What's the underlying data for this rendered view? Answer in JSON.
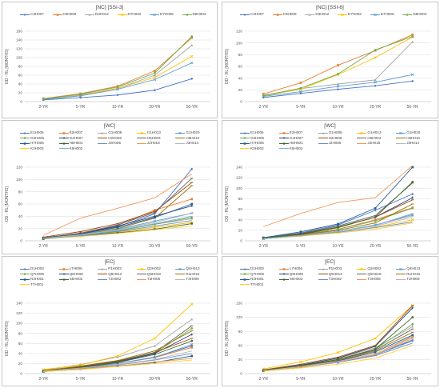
{
  "chart_data": [
    {
      "type": "line",
      "title": "[NC] [SSI-3]",
      "ylabel": "DD - RL [MONTHS]",
      "categories": [
        "2-YR",
        "5-YR",
        "10-YR",
        "20-YR",
        "50-YR"
      ],
      "ylim": [
        0,
        160
      ],
      "yticks": [
        0,
        20,
        40,
        60,
        80,
        100,
        120,
        140,
        160
      ],
      "legend_position": "top",
      "legend_columns": 6,
      "series": [
        {
          "name": "C3H007",
          "color": "#4472c4",
          "marker": "diamond",
          "values": [
            4,
            9,
            15,
            26,
            52
          ]
        },
        {
          "name": "C9H009",
          "color": "#ed7d31",
          "marker": "square",
          "values": [
            7,
            18,
            35,
            70,
            145
          ]
        },
        {
          "name": "D3H012",
          "color": "#a5a5a5",
          "marker": "triangle",
          "values": [
            6,
            15,
            30,
            60,
            128
          ]
        },
        {
          "name": "D7H002",
          "color": "#ffc000",
          "marker": "x",
          "values": [
            5,
            14,
            30,
            55,
            103
          ]
        },
        {
          "name": "D7H005",
          "color": "#5b9bd5",
          "marker": "x",
          "values": [
            5,
            13,
            28,
            50,
            88
          ]
        },
        {
          "name": "D8H004",
          "color": "#70ad47",
          "marker": "circle",
          "values": [
            6,
            17,
            33,
            65,
            148
          ]
        }
      ]
    },
    {
      "type": "line",
      "title": "[NC] [SSI-6]",
      "ylabel": "DD - RL [MONTHS]",
      "categories": [
        "2-YR",
        "5-YR",
        "10-YR",
        "20-YR",
        "50-YR"
      ],
      "ylim": [
        0,
        120
      ],
      "yticks": [
        0,
        20,
        40,
        60,
        80,
        100,
        120
      ],
      "legend_position": "top",
      "legend_columns": 6,
      "series": [
        {
          "name": "C3H007",
          "color": "#4472c4",
          "marker": "diamond",
          "values": [
            7,
            14,
            21,
            27,
            35
          ]
        },
        {
          "name": "C9H009",
          "color": "#ed7d31",
          "marker": "square",
          "values": [
            13,
            32,
            62,
            87,
            114
          ]
        },
        {
          "name": "D3H012",
          "color": "#a5a5a5",
          "marker": "triangle",
          "values": [
            11,
            22,
            30,
            37,
            102
          ]
        },
        {
          "name": "D7H002",
          "color": "#ffc000",
          "marker": "x",
          "values": [
            10,
            21,
            46,
            75,
            110
          ]
        },
        {
          "name": "D7H005",
          "color": "#5b9bd5",
          "marker": "x",
          "values": [
            9,
            17,
            26,
            33,
            46
          ]
        },
        {
          "name": "D8H004",
          "color": "#70ad47",
          "marker": "circle",
          "values": [
            10,
            23,
            47,
            88,
            111
          ]
        }
      ]
    },
    {
      "type": "line",
      "title": "[WC]",
      "ylabel": "DD - RL [MONTHS]",
      "categories": [
        "2-YR",
        "5-YR",
        "10-YR",
        "20-YR",
        "50-YR"
      ],
      "ylim": [
        0,
        120
      ],
      "yticks": [
        0,
        20,
        40,
        60,
        80,
        100,
        120
      ],
      "legend_position": "top",
      "legend_columns": 5,
      "series": [
        {
          "name": "E1H006",
          "color": "#4472c4",
          "marker": "diamond",
          "values": [
            4,
            11,
            23,
            44,
            117
          ]
        },
        {
          "name": "E2H007",
          "color": "#ed7d31",
          "marker": "square",
          "values": [
            4,
            13,
            25,
            50,
            68
          ]
        },
        {
          "name": "G1H008",
          "color": "#a5a5a5",
          "marker": "triangle",
          "values": [
            3,
            9,
            16,
            27,
            36
          ]
        },
        {
          "name": "G1H013",
          "color": "#ffc000",
          "marker": "x",
          "values": [
            3,
            8,
            14,
            22,
            30
          ]
        },
        {
          "name": "G1H020",
          "color": "#5b9bd5",
          "marker": "x",
          "values": [
            4,
            10,
            19,
            32,
            45
          ]
        },
        {
          "name": "G2H005",
          "color": "#70ad47",
          "marker": "circle",
          "values": [
            3,
            9,
            16,
            27,
            38
          ]
        },
        {
          "name": "G4H007",
          "color": "#264478",
          "marker": "plus",
          "values": [
            5,
            12,
            24,
            40,
            57
          ]
        },
        {
          "name": "H2H006",
          "color": "#9e480e",
          "marker": "dash",
          "values": [
            6,
            15,
            28,
            48,
            95
          ]
        },
        {
          "name": "H5H004",
          "color": "#636363",
          "marker": "dash",
          "values": [
            5,
            12,
            26,
            46,
            102
          ]
        },
        {
          "name": "H6H010",
          "color": "#997300",
          "marker": "dash",
          "values": [
            4,
            10,
            20,
            37,
            90
          ]
        },
        {
          "name": "H7H006",
          "color": "#255e91",
          "marker": "square",
          "values": [
            4,
            11,
            22,
            38,
            60
          ]
        },
        {
          "name": "H8H001",
          "color": "#43682b",
          "marker": "circle",
          "values": [
            3,
            8,
            13,
            19,
            28
          ]
        },
        {
          "name": "J2H005",
          "color": "#698ed0",
          "marker": "none",
          "values": [
            3,
            8,
            15,
            24,
            33
          ]
        },
        {
          "name": "J2H018",
          "color": "#f1975a",
          "marker": "none",
          "values": [
            9,
            37,
            53,
            70,
            109
          ]
        },
        {
          "name": "J3H014",
          "color": "#b7b7b7",
          "marker": "none",
          "values": [
            4,
            10,
            18,
            30,
            45
          ]
        },
        {
          "name": "K3H003",
          "color": "#ffcd33",
          "marker": "none",
          "values": [
            3,
            7,
            12,
            18,
            24
          ]
        },
        {
          "name": "K5H002",
          "color": "#7cafdd",
          "marker": "none",
          "values": [
            3,
            9,
            17,
            28,
            40
          ]
        }
      ]
    },
    {
      "type": "line",
      "title": "[WC]",
      "ylabel": "DD - RL [MONTHS]",
      "categories": [
        "2-YR",
        "5-YR",
        "10-YR",
        "20-YR",
        "50-YR"
      ],
      "ylim": [
        0,
        140
      ],
      "yticks": [
        0,
        20,
        40,
        60,
        80,
        100,
        120,
        140
      ],
      "legend_position": "top",
      "legend_columns": 5,
      "series": [
        {
          "name": "E1H006",
          "color": "#4472c4",
          "marker": "diamond",
          "values": [
            6,
            15,
            30,
            58,
            89
          ]
        },
        {
          "name": "E2H007",
          "color": "#ed7d31",
          "marker": "square",
          "values": [
            5,
            12,
            22,
            40,
            63
          ]
        },
        {
          "name": "G1H008",
          "color": "#a5a5a5",
          "marker": "triangle",
          "values": [
            4,
            10,
            18,
            30,
            48
          ]
        },
        {
          "name": "G1H013",
          "color": "#ffc000",
          "marker": "x",
          "values": [
            4,
            10,
            16,
            26,
            40
          ]
        },
        {
          "name": "G1H020",
          "color": "#5b9bd5",
          "marker": "x",
          "values": [
            4,
            10,
            18,
            30,
            50
          ]
        },
        {
          "name": "G2H005",
          "color": "#70ad47",
          "marker": "circle",
          "values": [
            5,
            12,
            22,
            38,
            62
          ]
        },
        {
          "name": "G4H007",
          "color": "#264478",
          "marker": "plus",
          "values": [
            5,
            13,
            26,
            45,
            82
          ]
        },
        {
          "name": "H2H006",
          "color": "#9e480e",
          "marker": "dash",
          "values": [
            5,
            12,
            25,
            45,
            78
          ]
        },
        {
          "name": "H5H004",
          "color": "#636363",
          "marker": "dash",
          "values": [
            5,
            14,
            28,
            48,
            110
          ]
        },
        {
          "name": "H6H010",
          "color": "#997300",
          "marker": "dash",
          "values": [
            4,
            11,
            20,
            34,
            70
          ]
        },
        {
          "name": "H7H006",
          "color": "#255e91",
          "marker": "square",
          "values": [
            6,
            17,
            32,
            62,
            140
          ]
        },
        {
          "name": "H8H001",
          "color": "#43682b",
          "marker": "circle",
          "values": [
            5,
            13,
            26,
            45,
            112
          ]
        },
        {
          "name": "J2H005",
          "color": "#698ed0",
          "marker": "none",
          "values": [
            4,
            9,
            16,
            25,
            36
          ]
        },
        {
          "name": "J2H018",
          "color": "#f1975a",
          "marker": "none",
          "values": [
            27,
            52,
            73,
            82,
            143
          ]
        },
        {
          "name": "J3H014",
          "color": "#b7b7b7",
          "marker": "none",
          "values": [
            4,
            10,
            18,
            28,
            45
          ]
        },
        {
          "name": "K3H003",
          "color": "#ffcd33",
          "marker": "none",
          "values": [
            4,
            9,
            15,
            22,
            34
          ]
        },
        {
          "name": "K5H002",
          "color": "#7cafdd",
          "marker": "none",
          "values": [
            4,
            10,
            18,
            29,
            52
          ]
        }
      ]
    },
    {
      "type": "line",
      "title": "[EC]",
      "ylabel": "DD - RL [MONTHS]",
      "categories": [
        "2-YR",
        "5-YR",
        "10-YR",
        "20-YR",
        "50-YR"
      ],
      "ylim": [
        0,
        140
      ],
      "yticks": [
        0,
        20,
        40,
        60,
        80,
        100,
        120,
        140
      ],
      "legend_position": "top",
      "legend_columns": 5,
      "series": [
        {
          "name": "D1H003",
          "color": "#4472c4",
          "marker": "diamond",
          "values": [
            5,
            12,
            20,
            33,
            55
          ]
        },
        {
          "name": "L7H006",
          "color": "#ed7d31",
          "marker": "square",
          "values": [
            5,
            11,
            20,
            32,
            52
          ]
        },
        {
          "name": "P1H003",
          "color": "#a5a5a5",
          "marker": "triangle",
          "values": [
            7,
            18,
            33,
            55,
            108
          ]
        },
        {
          "name": "Q2H002",
          "color": "#ffc000",
          "marker": "x",
          "values": [
            8,
            17,
            35,
            70,
            138
          ]
        },
        {
          "name": "Q4H013",
          "color": "#5b9bd5",
          "marker": "x",
          "values": [
            5,
            11,
            20,
            32,
            58
          ]
        },
        {
          "name": "Q7H005",
          "color": "#70ad47",
          "marker": "circle",
          "values": [
            5,
            12,
            23,
            40,
            90
          ]
        },
        {
          "name": "Q8H008",
          "color": "#264478",
          "marker": "plus",
          "values": [
            5,
            12,
            23,
            40,
            78
          ]
        },
        {
          "name": "Q9H012",
          "color": "#9e480e",
          "marker": "dash",
          "values": [
            6,
            14,
            25,
            42,
            70
          ]
        },
        {
          "name": "Q9H018",
          "color": "#636363",
          "marker": "dash",
          "values": [
            5,
            13,
            24,
            42,
            95
          ]
        },
        {
          "name": "R1H015",
          "color": "#997300",
          "marker": "dash",
          "values": [
            6,
            15,
            26,
            45,
            85
          ]
        },
        {
          "name": "R2H001",
          "color": "#255e91",
          "marker": "square",
          "values": [
            4,
            9,
            15,
            22,
            35
          ]
        },
        {
          "name": "S5H002",
          "color": "#43682b",
          "marker": "circle",
          "values": [
            5,
            12,
            22,
            38,
            65
          ]
        },
        {
          "name": "T3H002",
          "color": "#698ed0",
          "marker": "none",
          "values": [
            4,
            10,
            17,
            27,
            40
          ]
        },
        {
          "name": "T3H005",
          "color": "#f1975a",
          "marker": "none",
          "values": [
            4,
            9,
            15,
            23,
            30
          ]
        },
        {
          "name": "T3H009",
          "color": "#b7b7b7",
          "marker": "none",
          "values": [
            5,
            11,
            18,
            28,
            45
          ]
        },
        {
          "name": "T7H001",
          "color": "#ffcd33",
          "marker": "none",
          "values": [
            4,
            8,
            14,
            20,
            27
          ]
        }
      ]
    },
    {
      "type": "line",
      "title": "[EC]",
      "ylabel": "DD - RL [MONTHS]",
      "categories": [
        "2-YR",
        "5-YR",
        "10-YR",
        "20-YR",
        "50-YR"
      ],
      "ylim": [
        0,
        150
      ],
      "yticks": [
        0,
        30,
        60,
        90,
        120,
        150
      ],
      "legend_position": "top",
      "legend_columns": 5,
      "series": [
        {
          "name": "D1H003",
          "color": "#4472c4",
          "marker": "diamond",
          "values": [
            6,
            14,
            24,
            40,
            70
          ]
        },
        {
          "name": "L7H006",
          "color": "#ed7d31",
          "marker": "square",
          "values": [
            6,
            15,
            26,
            42,
            78
          ]
        },
        {
          "name": "P1H003",
          "color": "#a5a5a5",
          "marker": "triangle",
          "values": [
            7,
            18,
            32,
            55,
            100
          ]
        },
        {
          "name": "Q2H002",
          "color": "#ffc000",
          "marker": "x",
          "values": [
            10,
            25,
            45,
            75,
            145
          ]
        },
        {
          "name": "Q4H013",
          "color": "#5b9bd5",
          "marker": "x",
          "values": [
            6,
            14,
            24,
            40,
            72
          ]
        },
        {
          "name": "Q7H005",
          "color": "#70ad47",
          "marker": "circle",
          "values": [
            7,
            17,
            30,
            52,
            105
          ]
        },
        {
          "name": "Q8H008",
          "color": "#264478",
          "marker": "plus",
          "values": [
            7,
            18,
            33,
            58,
            140
          ]
        },
        {
          "name": "Q9H012",
          "color": "#9e480e",
          "marker": "dash",
          "values": [
            8,
            20,
            35,
            60,
            145
          ]
        },
        {
          "name": "Q9H018",
          "color": "#636363",
          "marker": "dash",
          "values": [
            7,
            17,
            30,
            50,
            95
          ]
        },
        {
          "name": "R1H015",
          "color": "#997300",
          "marker": "dash",
          "values": [
            6,
            16,
            28,
            48,
            88
          ]
        },
        {
          "name": "R2H001",
          "color": "#255e91",
          "marker": "square",
          "values": [
            6,
            15,
            27,
            46,
            82
          ]
        },
        {
          "name": "S5H002",
          "color": "#43682b",
          "marker": "circle",
          "values": [
            7,
            17,
            30,
            52,
            120
          ]
        },
        {
          "name": "T3H002",
          "color": "#698ed0",
          "marker": "none",
          "values": [
            6,
            14,
            24,
            38,
            65
          ]
        },
        {
          "name": "T3H005",
          "color": "#f1975a",
          "marker": "none",
          "values": [
            6,
            14,
            25,
            40,
            75
          ]
        },
        {
          "name": "T3H009",
          "color": "#b7b7b7",
          "marker": "none",
          "values": [
            6,
            15,
            26,
            42,
            80
          ]
        },
        {
          "name": "T7H001",
          "color": "#ffcd33",
          "marker": "none",
          "values": [
            5,
            12,
            20,
            33,
            60
          ]
        }
      ]
    }
  ]
}
